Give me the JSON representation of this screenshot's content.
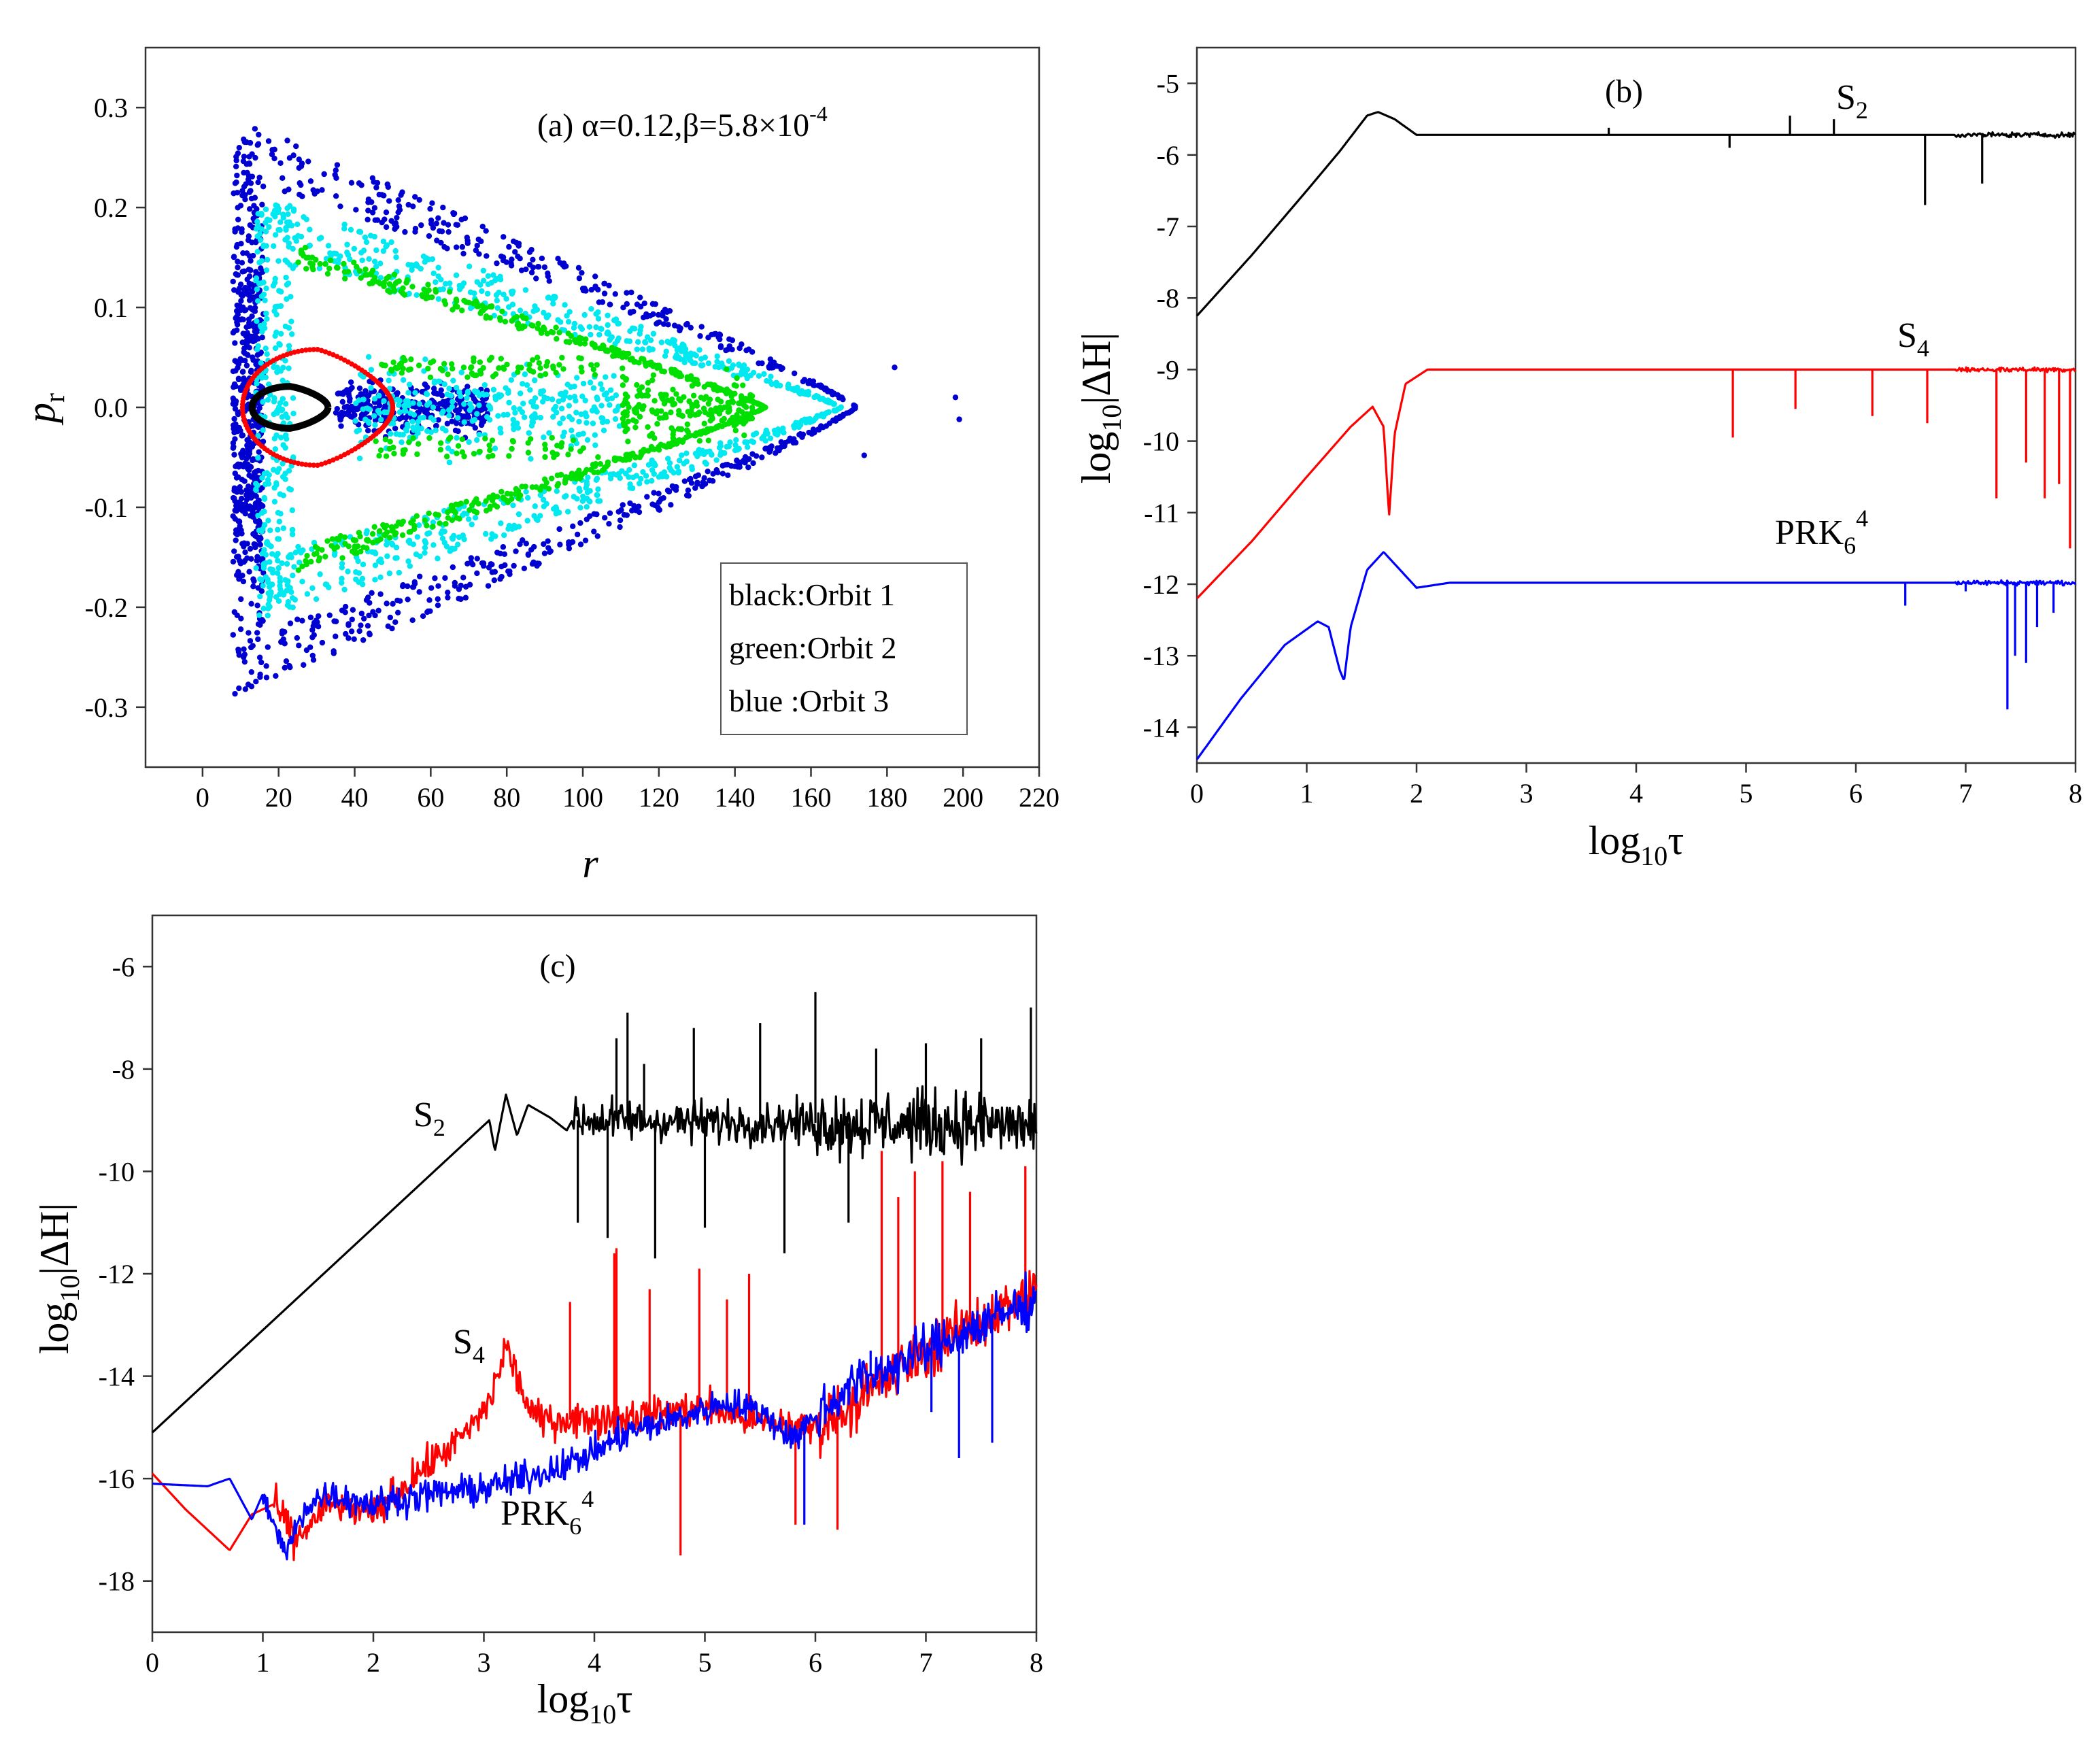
{
  "chart_data": [
    {
      "panel": "a",
      "type": "scatter",
      "panel_label": "(a)",
      "annotation": "α=0.12,β=5.8×10",
      "annotation_exp": "-4",
      "xlabel": "r",
      "ylabel": "p",
      "ylabel_sub": "r",
      "xlim": [
        -15,
        220
      ],
      "ylim": [
        -0.36,
        0.36
      ],
      "xticks": [
        "0",
        "20",
        "40",
        "60",
        "80",
        "100",
        "120",
        "140",
        "160",
        "180",
        "200",
        "220"
      ],
      "yticks": [
        "-0.3",
        "-0.2",
        "-0.1",
        "0.0",
        "0.1",
        "0.2",
        "0.3"
      ],
      "legend": [
        "black:Orbit 1",
        "green:Orbit 2",
        "blue :Orbit 3"
      ],
      "colors": {
        "orbit1": "#000000",
        "orbit_red": "#ff0000",
        "orbit2": "#00e000",
        "orbit_cyan": "#00e8f0",
        "orbit3": "#0000d0"
      },
      "orbit1_loop": {
        "r_left": 13,
        "r_right": 33,
        "p_top": 0.021,
        "p_bottom": -0.021
      },
      "red_loop": {
        "r_left": 10.5,
        "r_right": 50,
        "p_top": 0.058,
        "p_bottom": -0.058
      },
      "green_boundary": {
        "r_left": 25,
        "r_right": 148,
        "p_top": 0.165
      },
      "cyan_boundary": {
        "r_left": 14,
        "r_right": 168,
        "p_top": 0.225
      },
      "blue_boundary": {
        "r_left": 8,
        "r_right": 172,
        "p_top": 0.29
      },
      "blue_outliers": [
        [
          182,
          0.04
        ],
        [
          198,
          0.01
        ],
        [
          199,
          -0.012
        ],
        [
          174,
          -0.048
        ]
      ]
    },
    {
      "panel": "b",
      "type": "line",
      "panel_label": "(b)",
      "xlabel": "log",
      "xlabel_sub": "10",
      "xlabel_tail": "τ",
      "ylabel": "log",
      "ylabel_sub": "10",
      "ylabel_tail": "|ΔH|",
      "xlim": [
        0,
        8
      ],
      "ylim": [
        -14.5,
        -4.5
      ],
      "xticks": [
        "0",
        "1",
        "2",
        "3",
        "4",
        "5",
        "6",
        "7",
        "8"
      ],
      "yticks": [
        "-5",
        "-6",
        "-7",
        "-8",
        "-9",
        "-10",
        "-11",
        "-12",
        "-13",
        "-14"
      ],
      "series": [
        {
          "name": "S",
          "sub": "2",
          "color": "#000000",
          "x": [
            0,
            0.5,
            1.0,
            1.3,
            1.55,
            1.65,
            1.8,
            2.0,
            2.3,
            8.0
          ],
          "y": [
            -8.25,
            -7.4,
            -6.5,
            -5.95,
            -5.45,
            -5.4,
            -5.5,
            -5.72,
            -5.72,
            -5.72
          ],
          "spikes": [
            [
              6.63,
              -6.7
            ],
            [
              7.15,
              -6.4
            ],
            [
              4.85,
              -5.9
            ],
            [
              5.4,
              -5.45
            ],
            [
              5.8,
              -5.5
            ],
            [
              3.75,
              -5.62
            ]
          ]
        },
        {
          "name": "S",
          "sub": "4",
          "color": "#ff0000",
          "x": [
            0,
            0.5,
            1.0,
            1.4,
            1.6,
            1.7,
            1.75,
            1.8,
            1.9,
            2.1,
            8.0
          ],
          "y": [
            -12.2,
            -11.4,
            -10.5,
            -9.8,
            -9.52,
            -9.8,
            -11.05,
            -9.9,
            -9.2,
            -9.0,
            -9.0
          ],
          "spikes": [
            [
              4.88,
              -9.95
            ],
            [
              5.45,
              -9.55
            ],
            [
              6.15,
              -9.65
            ],
            [
              6.65,
              -9.75
            ],
            [
              7.28,
              -10.8
            ],
            [
              7.55,
              -10.3
            ],
            [
              7.72,
              -10.8
            ],
            [
              7.85,
              -10.6
            ],
            [
              7.95,
              -11.5
            ]
          ]
        },
        {
          "name": "PRK",
          "sub": "6",
          "sup": "4",
          "color": "#0000ff",
          "x": [
            0,
            0.4,
            0.8,
            1.1,
            1.2,
            1.3,
            1.34,
            1.4,
            1.55,
            1.7,
            1.85,
            2.0,
            2.3,
            8.0
          ],
          "y": [
            -14.45,
            -13.6,
            -12.85,
            -12.52,
            -12.6,
            -13.2,
            -13.35,
            -12.6,
            -11.8,
            -11.55,
            -11.8,
            -12.05,
            -11.98,
            -11.98
          ],
          "spikes": [
            [
              6.45,
              -12.3
            ],
            [
              7.0,
              -12.1
            ],
            [
              7.38,
              -13.75
            ],
            [
              7.45,
              -13.0
            ],
            [
              7.55,
              -13.1
            ],
            [
              7.65,
              -12.6
            ],
            [
              7.8,
              -12.4
            ]
          ]
        }
      ]
    },
    {
      "panel": "c",
      "type": "line",
      "panel_label": "(c)",
      "xlabel": "log",
      "xlabel_sub": "10",
      "xlabel_tail": "τ",
      "ylabel": "log",
      "ylabel_sub": "10",
      "ylabel_tail": "|ΔH|",
      "xlim": [
        0,
        8
      ],
      "ylim": [
        -19,
        -5
      ],
      "xticks": [
        "0",
        "1",
        "2",
        "3",
        "4",
        "5",
        "6",
        "7",
        "8"
      ],
      "yticks": [
        "-6",
        "-8",
        "-10",
        "-12",
        "-14",
        "-16",
        "-18"
      ],
      "series": [
        {
          "name": "S",
          "sub": "2",
          "color": "#000000",
          "x": [
            0,
            0.5,
            1.0,
            1.5,
            2.0,
            2.5,
            2.9,
            3.05,
            3.1,
            3.2,
            3.3,
            3.4,
            3.6,
            3.75,
            3.8,
            8.0
          ],
          "y": [
            -15.1,
            -14.1,
            -13.1,
            -12.1,
            -11.1,
            -10.1,
            -9.3,
            -9.0,
            -9.6,
            -8.5,
            -9.3,
            -8.7,
            -8.95,
            -9.2,
            -9.0,
            -9.1
          ],
          "noise_from": 3.8,
          "noise_base": -9.1,
          "noise_amp": 0.6,
          "spikes": [
            [
              3.85,
              -11.0
            ],
            [
              4.12,
              -11.3
            ],
            [
              4.55,
              -11.7
            ],
            [
              5.0,
              -11.1
            ],
            [
              5.72,
              -11.6
            ],
            [
              6.3,
              -11.0
            ],
            [
              4.2,
              -7.4
            ],
            [
              4.3,
              -6.9
            ],
            [
              4.45,
              -7.9
            ],
            [
              4.9,
              -7.2
            ],
            [
              5.5,
              -7.1
            ],
            [
              6.0,
              -6.5
            ],
            [
              6.55,
              -7.6
            ],
            [
              7.0,
              -7.5
            ],
            [
              7.5,
              -7.4
            ],
            [
              7.95,
              -6.8
            ]
          ]
        },
        {
          "name": "S",
          "sub": "4",
          "color": "#ff0000",
          "x": [
            0,
            0.3,
            0.7,
            0.9,
            1.1,
            1.3,
            1.6,
            2.0,
            2.4,
            2.8,
            3.0,
            3.1,
            3.2,
            3.3,
            3.4,
            3.5,
            3.8,
            4.3,
            5.0,
            5.5,
            6.0,
            6.5,
            7.0,
            7.5,
            8.0
          ],
          "y": [
            -15.9,
            -16.6,
            -17.4,
            -16.7,
            -16.5,
            -17.2,
            -16.5,
            -16.7,
            -15.9,
            -15.2,
            -14.7,
            -14.2,
            -13.4,
            -14.0,
            -14.6,
            -14.85,
            -14.85,
            -14.8,
            -14.6,
            -14.9,
            -15.0,
            -14.3,
            -13.5,
            -12.9,
            -12.4
          ],
          "noise_from": 1.1,
          "noise_base": -16.4,
          "noise_amp": 0.5,
          "spikes": [
            [
              3.78,
              -12.55
            ],
            [
              4.18,
              -11.6
            ],
            [
              4.5,
              -12.3
            ],
            [
              4.78,
              -17.5
            ],
            [
              4.95,
              -11.9
            ],
            [
              5.4,
              -12.0
            ],
            [
              5.82,
              -16.9
            ],
            [
              6.2,
              -17.0
            ],
            [
              6.6,
              -9.6
            ],
            [
              6.75,
              -10.5
            ],
            [
              6.9,
              -10.0
            ],
            [
              7.15,
              -9.8
            ],
            [
              7.4,
              -10.4
            ],
            [
              7.9,
              -9.9
            ],
            [
              4.2,
              -11.5
            ],
            [
              5.2,
              -12.5
            ]
          ]
        },
        {
          "name": "PRK",
          "sub": "6",
          "sup": "4",
          "color": "#0000ff",
          "x": [
            0,
            0.5,
            0.7,
            0.9,
            1.0,
            1.2,
            1.4,
            1.6,
            2.0,
            2.5,
            3.0,
            3.5,
            3.9,
            4.3,
            4.8,
            5.2,
            5.5,
            5.8,
            6.0,
            6.3,
            6.6,
            7.0,
            7.5,
            8.0
          ],
          "y": [
            -16.1,
            -16.15,
            -16.0,
            -16.8,
            -16.3,
            -17.5,
            -16.5,
            -16.3,
            -16.5,
            -16.3,
            -16.2,
            -15.9,
            -15.6,
            -15.1,
            -14.8,
            -14.5,
            -14.7,
            -15.2,
            -14.8,
            -14.2,
            -13.9,
            -13.5,
            -13.0,
            -12.5
          ],
          "noise_from": 1.0,
          "noise_base": -16.3,
          "noise_amp": 0.45,
          "spikes": [
            [
              5.9,
              -16.9
            ],
            [
              6.5,
              -13.5
            ],
            [
              7.3,
              -15.6
            ],
            [
              7.6,
              -15.3
            ],
            [
              7.05,
              -14.7
            ]
          ]
        }
      ]
    }
  ]
}
